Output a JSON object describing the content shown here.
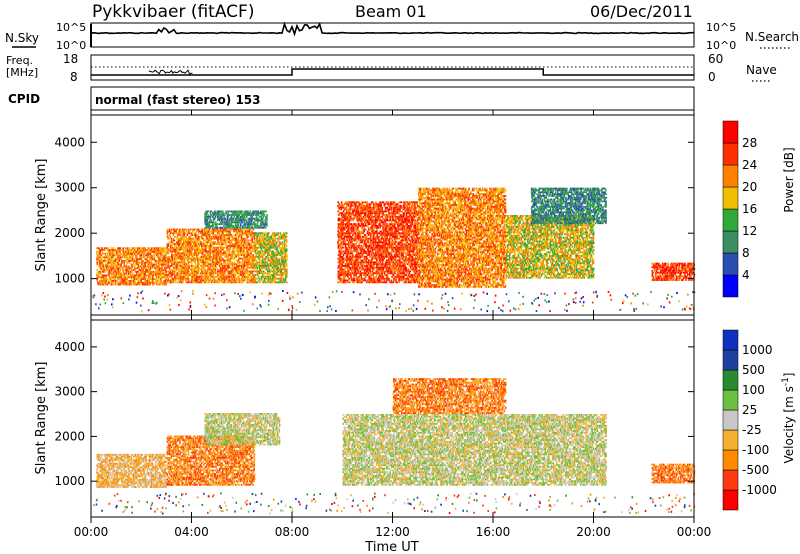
{
  "header": {
    "station": "Pykkvibaer (fitACF)",
    "beam": "Beam 01",
    "date": "06/Dec/2011"
  },
  "noise_panel": {
    "left_label": "N.Sky",
    "right_label": "N.Search",
    "left_ticks": [
      "10^5",
      "10^0"
    ],
    "right_ticks": [
      "10^5",
      "10^0"
    ]
  },
  "freq_panel": {
    "left_label_line1": "Freq.",
    "left_label_line2": "[MHz]",
    "right_label": "Nave",
    "left_ticks": [
      "18",
      "8"
    ],
    "right_ticks": [
      "60",
      "0"
    ]
  },
  "cpid_panel": {
    "label": "CPID",
    "text": "normal (fast stereo) 153"
  },
  "x_axis": {
    "title": "Time UT",
    "ticks": [
      "00:00",
      "04:00",
      "08:00",
      "12:00",
      "16:00",
      "20:00",
      "00:00"
    ]
  },
  "colors": {
    "power": [
      "#0000ff",
      "#2a4fb0",
      "#3b8f60",
      "#2faa3a",
      "#f0c000",
      "#ff8000",
      "#ff3000",
      "#ff0000"
    ],
    "velocity": [
      "#ff0000",
      "#ff3a10",
      "#ff8a00",
      "#f6b030",
      "#c8c8c8",
      "#6cc040",
      "#2a8a30",
      "#2040a0",
      "#1030c0"
    ]
  },
  "chart_data": [
    {
      "type": "heatmap",
      "panel": "power",
      "ylabel": "Slant Range [km]",
      "xlabel": "",
      "x_range": [
        "00:00",
        "24:00"
      ],
      "ylim": [
        200,
        4600
      ],
      "y_ticks": [
        1000,
        2000,
        3000,
        4000
      ],
      "colorbar_label": "Power [dB]",
      "colorbar_ticks": [
        "28",
        "24",
        "20",
        "16",
        "12",
        "8",
        "4"
      ],
      "regions": [
        {
          "t0": 0.2,
          "t1": 3.0,
          "r0": 850,
          "r1": 1700,
          "level": 5
        },
        {
          "t0": 3.0,
          "t1": 6.5,
          "r0": 900,
          "r1": 2100,
          "level": 5
        },
        {
          "t0": 6.5,
          "t1": 7.8,
          "r0": 900,
          "r1": 2000,
          "level": 4
        },
        {
          "t0": 4.5,
          "t1": 7.0,
          "r0": 2100,
          "r1": 2500,
          "level": 2
        },
        {
          "t0": 9.8,
          "t1": 13.0,
          "r0": 900,
          "r1": 2700,
          "level": 6
        },
        {
          "t0": 13.0,
          "t1": 16.5,
          "r0": 800,
          "r1": 3000,
          "level": 5
        },
        {
          "t0": 16.5,
          "t1": 20.0,
          "r0": 1000,
          "r1": 2400,
          "level": 4
        },
        {
          "t0": 17.5,
          "t1": 20.5,
          "r0": 2200,
          "r1": 3000,
          "level": 2
        },
        {
          "t0": 22.3,
          "t1": 24.0,
          "r0": 950,
          "r1": 1350,
          "level": 6
        }
      ]
    },
    {
      "type": "heatmap",
      "panel": "velocity",
      "ylabel": "Slant Range [km]",
      "xlabel": "Time UT",
      "x_range": [
        "00:00",
        "24:00"
      ],
      "ylim": [
        200,
        4600
      ],
      "y_ticks": [
        1000,
        2000,
        3000,
        4000
      ],
      "colorbar_label": "Velocity [m s^-1]",
      "colorbar_ticks": [
        "1000",
        "500",
        "100",
        "25",
        "-25",
        "-100",
        "-500",
        "-1000"
      ],
      "regions": [
        {
          "t0": 0.2,
          "t1": 3.0,
          "r0": 850,
          "r1": 1600,
          "level": 3
        },
        {
          "t0": 3.0,
          "t1": 6.5,
          "r0": 900,
          "r1": 2000,
          "level": 2
        },
        {
          "t0": 4.5,
          "t1": 7.5,
          "r0": 1800,
          "r1": 2500,
          "level": 4
        },
        {
          "t0": 10.0,
          "t1": 20.5,
          "r0": 900,
          "r1": 2500,
          "level": 4
        },
        {
          "t0": 12.0,
          "t1": 16.5,
          "r0": 2500,
          "r1": 3300,
          "level": 2
        },
        {
          "t0": 22.3,
          "t1": 24.0,
          "r0": 950,
          "r1": 1400,
          "level": 2
        }
      ]
    }
  ]
}
